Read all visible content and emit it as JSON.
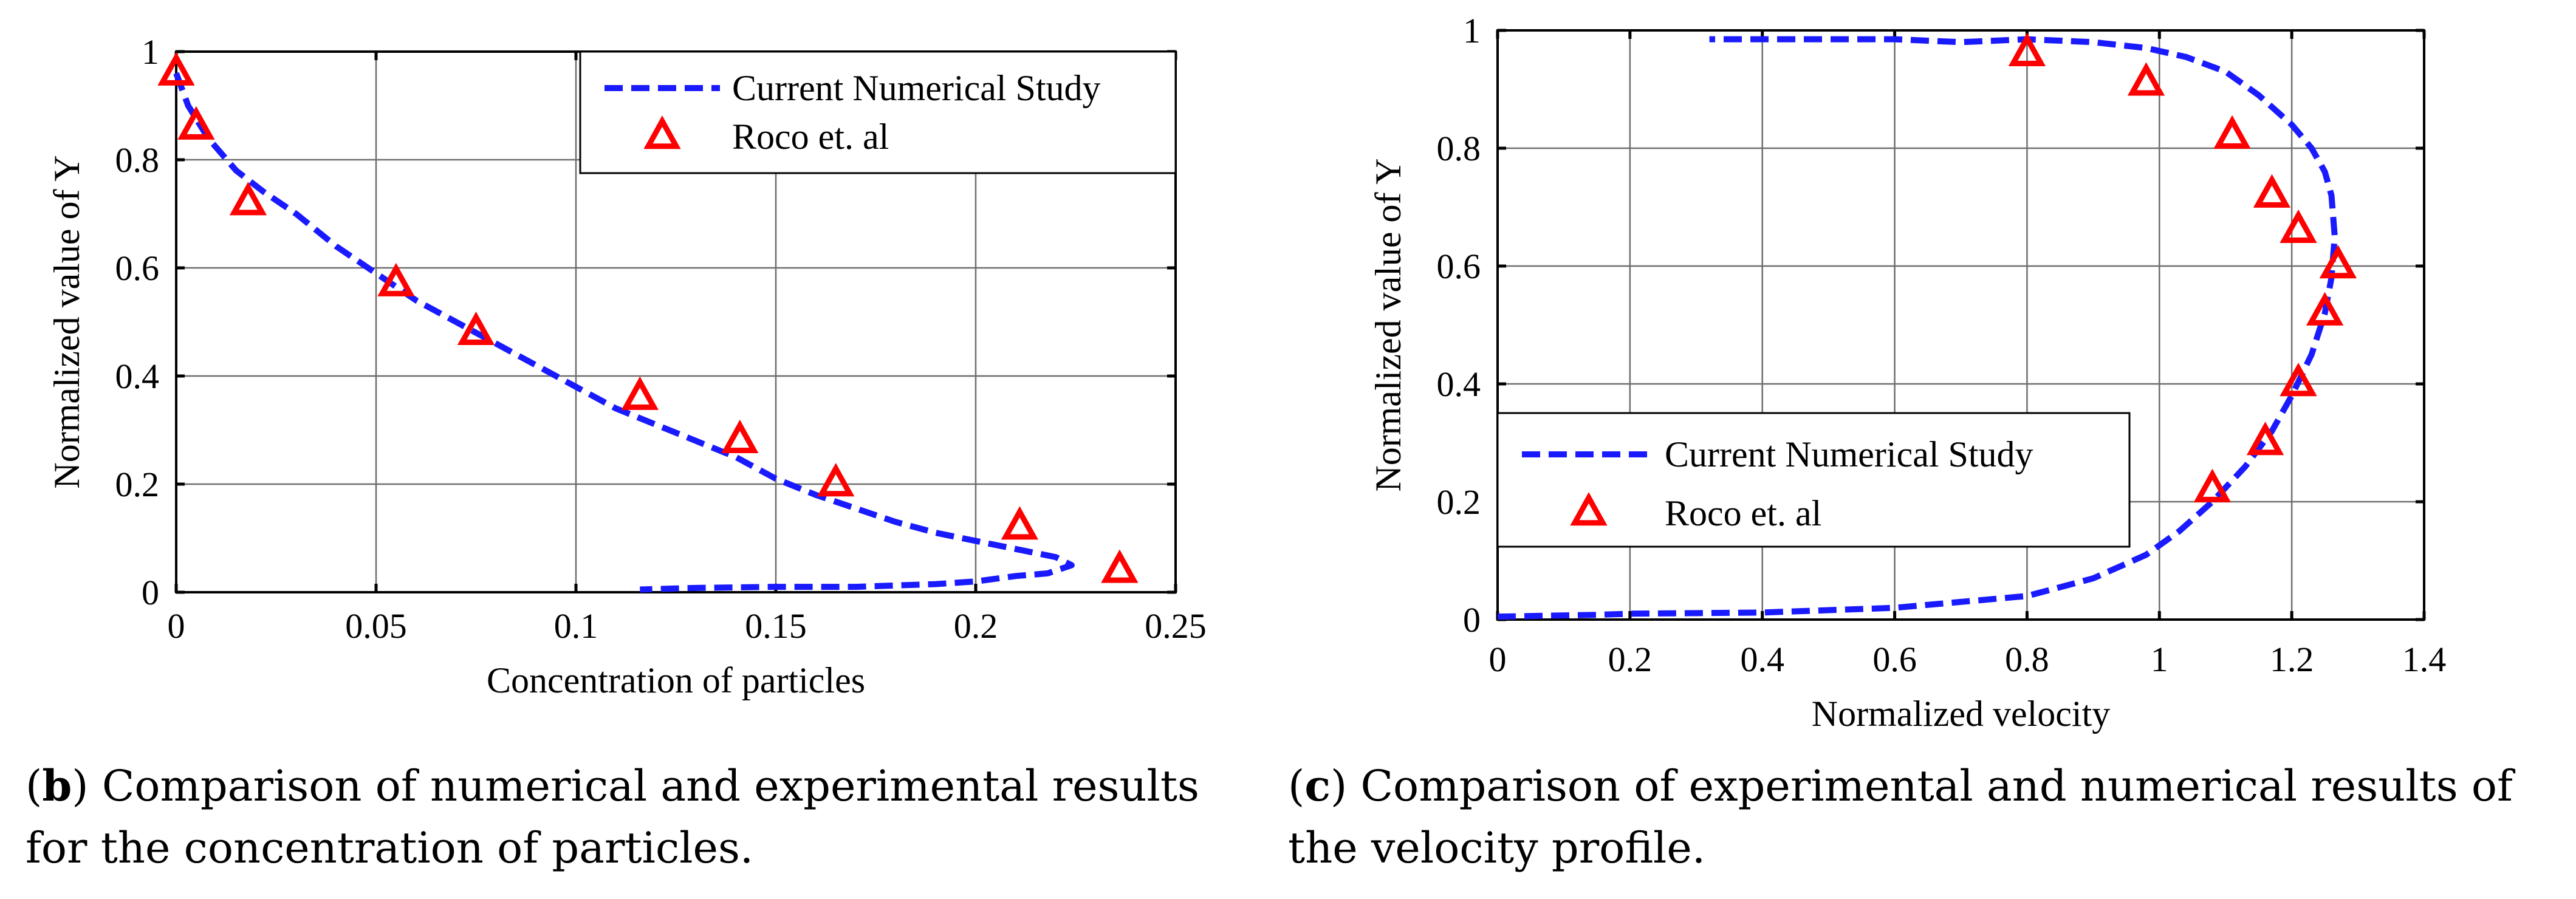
{
  "chart_data": [
    {
      "type": "line",
      "xlabel": "Concentration of particles",
      "ylabel": "Normalized  value of Y",
      "xlim": [
        0,
        0.25
      ],
      "ylim": [
        0,
        1
      ],
      "x_ticks": [
        "0",
        "0.05",
        "0.1",
        "0.15",
        "0.2",
        "0.25"
      ],
      "y_ticks": [
        "0",
        "0.2",
        "0.4",
        "0.6",
        "0.8",
        "1"
      ],
      "grid": true,
      "legend": "top-right",
      "caption_letter": "b",
      "caption_line1": ") Comparison of numerical and experimental results",
      "caption_line2": "for the concentration of particles.",
      "series": [
        {
          "name": "Current Numerical Study",
          "style": "dashed-line",
          "color": "#1a1aff",
          "x": [
            0.0,
            0.003,
            0.008,
            0.015,
            0.022,
            0.03,
            0.04,
            0.05,
            0.06,
            0.075,
            0.09,
            0.1,
            0.11,
            0.12,
            0.13,
            0.14,
            0.15,
            0.16,
            0.17,
            0.18,
            0.19,
            0.2,
            0.21,
            0.22,
            0.224,
            0.218,
            0.21,
            0.2,
            0.19,
            0.17,
            0.15,
            0.13,
            0.12,
            0.116
          ],
          "y": [
            0.96,
            0.9,
            0.84,
            0.78,
            0.74,
            0.7,
            0.64,
            0.59,
            0.54,
            0.48,
            0.42,
            0.38,
            0.34,
            0.31,
            0.28,
            0.25,
            0.21,
            0.18,
            0.155,
            0.13,
            0.11,
            0.095,
            0.08,
            0.065,
            0.05,
            0.035,
            0.03,
            0.02,
            0.015,
            0.01,
            0.01,
            0.008,
            0.006,
            0.005
          ]
        },
        {
          "name": "Roco et. al",
          "style": "triangle-markers",
          "color": "#ff0000",
          "x": [
            0.0,
            0.005,
            0.018,
            0.055,
            0.075,
            0.116,
            0.141,
            0.165,
            0.211,
            0.236
          ],
          "y": [
            0.96,
            0.86,
            0.72,
            0.57,
            0.48,
            0.36,
            0.28,
            0.2,
            0.12,
            0.04
          ]
        }
      ]
    },
    {
      "type": "line",
      "xlabel": "Normalized velocity",
      "ylabel": "Normalized  value of Y",
      "xlim": [
        0,
        1.4
      ],
      "ylim": [
        0,
        1
      ],
      "x_ticks": [
        "0",
        "0.2",
        "0.4",
        "0.6",
        "0.8",
        "1",
        "1.2",
        "1.4"
      ],
      "y_ticks": [
        "0",
        "0.2",
        "0.4",
        "0.6",
        "0.8",
        "1"
      ],
      "grid": true,
      "legend": "lower-left",
      "caption_letter": "c",
      "caption_line1": ") Comparison of experimental and numerical results of",
      "caption_line2": "the velocity profile.",
      "series": [
        {
          "name": "Current Numerical Study",
          "style": "dashed-line",
          "color": "#1a1aff",
          "x": [
            0.0,
            0.15,
            0.2,
            0.4,
            0.6,
            0.7,
            0.8,
            0.9,
            0.98,
            1.03,
            1.08,
            1.13,
            1.17,
            1.2,
            1.23,
            1.25,
            1.26,
            1.265,
            1.26,
            1.25,
            1.23,
            1.2,
            1.15,
            1.1,
            1.04,
            0.98,
            0.9,
            0.8,
            0.7,
            0.6,
            0.45,
            0.32
          ],
          "y": [
            0.005,
            0.008,
            0.01,
            0.012,
            0.02,
            0.03,
            0.04,
            0.07,
            0.11,
            0.15,
            0.2,
            0.26,
            0.32,
            0.38,
            0.45,
            0.52,
            0.58,
            0.65,
            0.72,
            0.76,
            0.8,
            0.84,
            0.89,
            0.93,
            0.955,
            0.97,
            0.98,
            0.985,
            0.98,
            0.985,
            0.985,
            0.985
          ]
        },
        {
          "name": "Roco et. al",
          "style": "triangle-markers",
          "color": "#ff0000",
          "x": [
            0.8,
            0.98,
            1.11,
            1.17,
            1.21,
            1.27,
            1.25,
            1.21,
            1.16,
            1.08
          ],
          "y": [
            0.96,
            0.91,
            0.82,
            0.72,
            0.66,
            0.6,
            0.52,
            0.4,
            0.3,
            0.22
          ]
        }
      ]
    }
  ]
}
